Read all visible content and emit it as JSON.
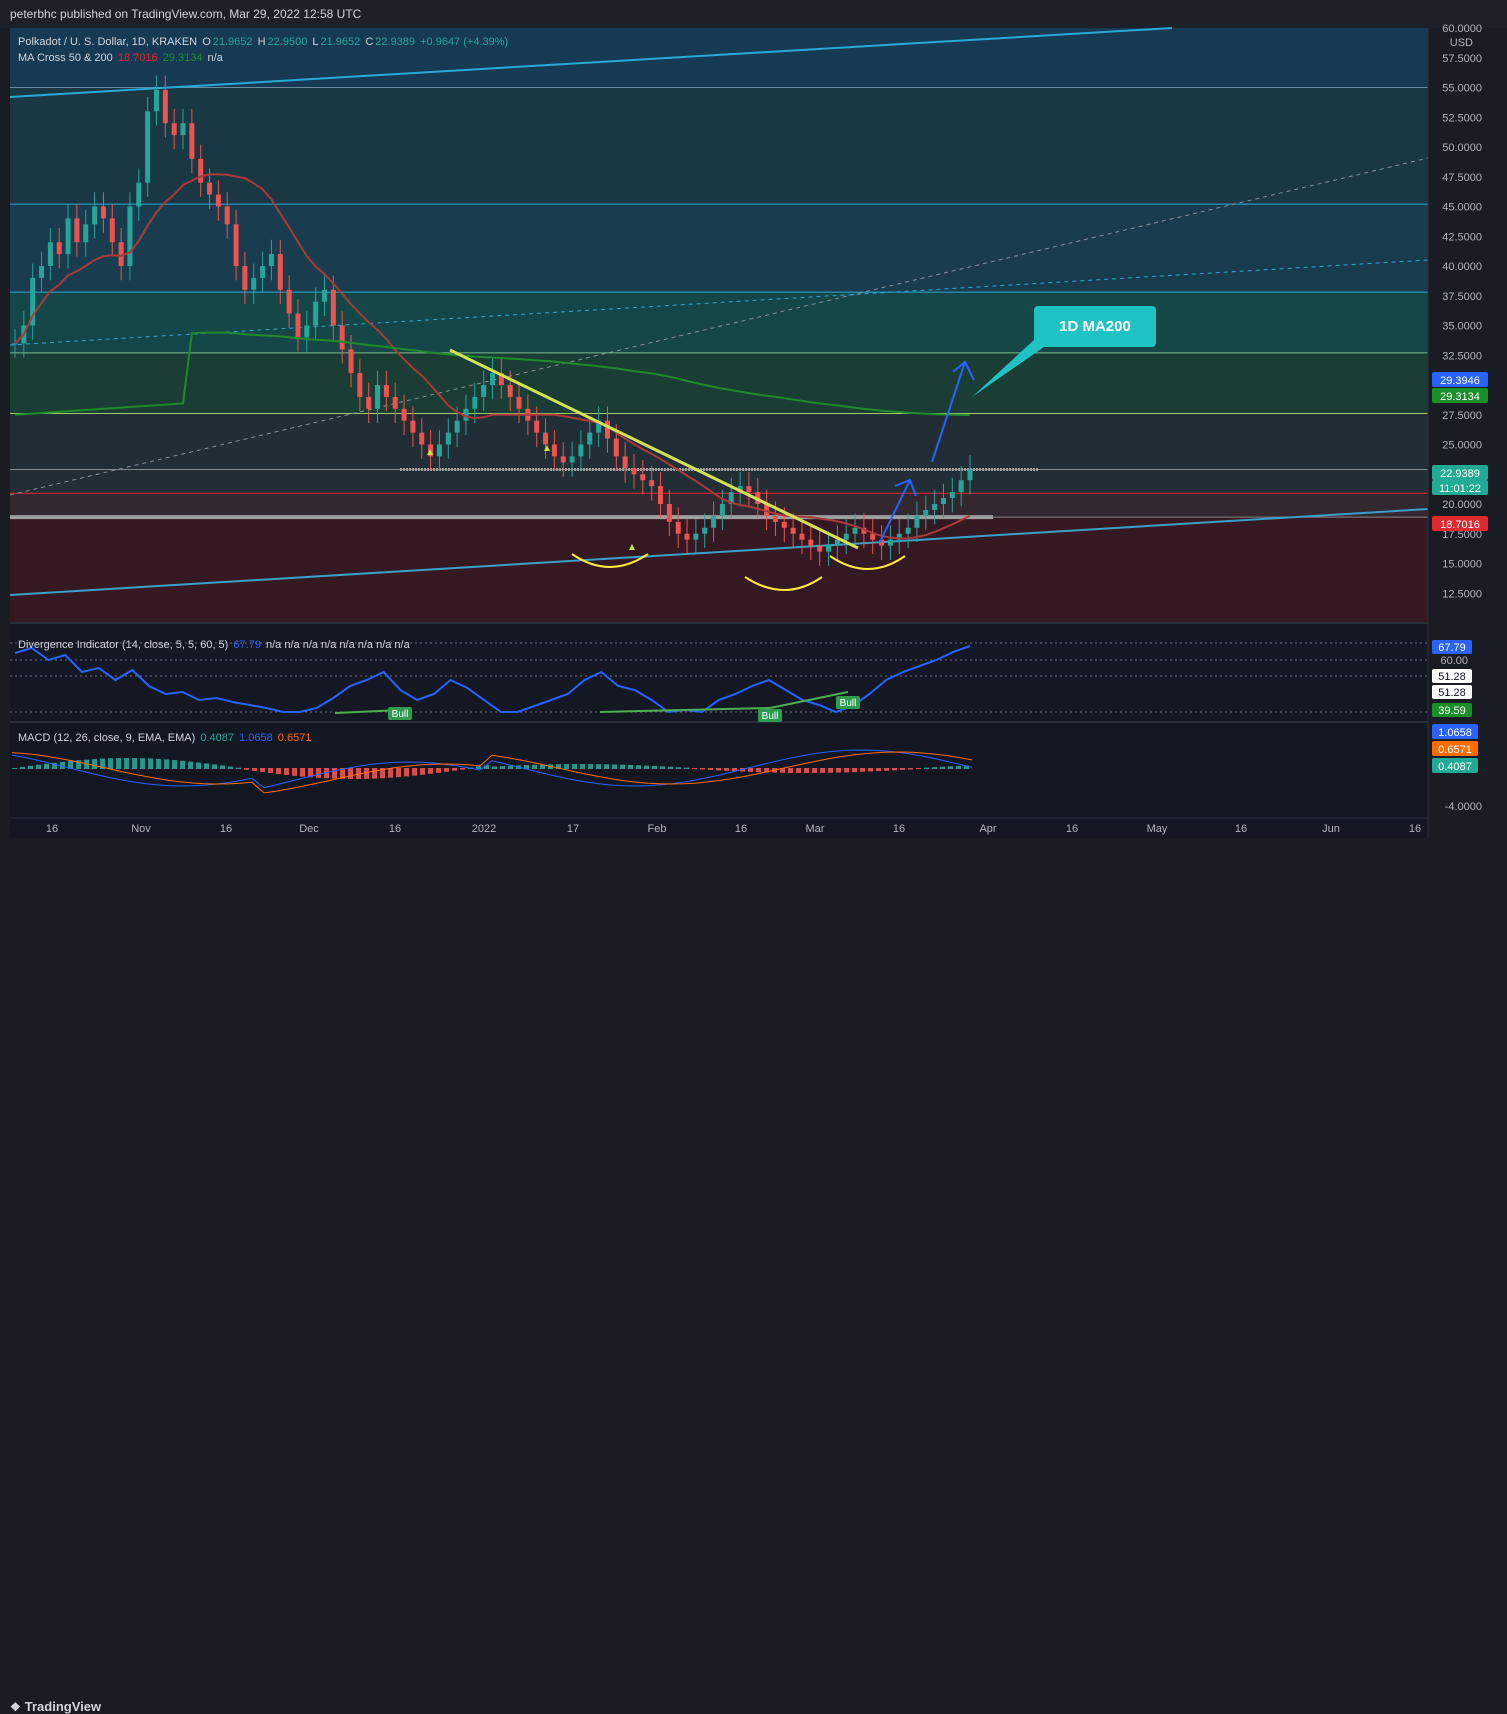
{
  "header": {
    "publisher_text": "peterbhc published on TradingView.com, Mar 29, 2022 12:58 UTC"
  },
  "legend": {
    "symbol_title": "Polkadot / U. S. Dollar, 1D, KRAKEN",
    "ohlc": {
      "o_label": "O",
      "o": "21.9652",
      "h_label": "H",
      "h": "22.9500",
      "l_label": "L",
      "l": "21.9652",
      "c_label": "C",
      "c": "22.9389",
      "change": "+0.9647 (+4.39%)"
    },
    "ma_cross": {
      "label": "MA Cross 50 & 200",
      "ma50": "18.7016",
      "ma200": "29.3134",
      "extra": "n/a"
    },
    "divergence": {
      "label": "Divergence Indicator (14, close, 5, 5, 60, 5)",
      "value": "67.79",
      "na": "n/a  n/a  n/a  n/a  n/a  n/a  n/a  n/a"
    },
    "macd": {
      "label": "MACD (12, 26, close, 9, EMA, EMA)",
      "hist": "0.4087",
      "macd": "1.0658",
      "signal": "0.6571"
    }
  },
  "price_scale": {
    "currency": "USD",
    "ticks": [
      "60.0000",
      "57.5000",
      "55.0000",
      "52.5000",
      "50.0000",
      "47.5000",
      "45.0000",
      "42.5000",
      "40.0000",
      "37.5000",
      "35.0000",
      "32.5000",
      "27.5000",
      "25.0000",
      "20.0000",
      "17.5000",
      "15.0000",
      "12.5000"
    ],
    "tags": [
      {
        "text": "29.3946",
        "color": "#2962ff"
      },
      {
        "text": "29.3134",
        "color": "#1b8f2a"
      },
      {
        "text": "22.9389",
        "color": "#22ab94"
      },
      {
        "text": "11:01:22",
        "color": "#22ab94"
      },
      {
        "text": "18.7016",
        "color": "#e0282f"
      }
    ]
  },
  "divergence_scale": {
    "ticks": [
      "60.00"
    ],
    "tags": [
      {
        "text": "67.79",
        "color": "#2962ff"
      },
      {
        "text": "51.28",
        "color": "#ffffff"
      },
      {
        "text": "51.28",
        "color": "#ffffff"
      },
      {
        "text": "39.59",
        "color": "#1b8f2a"
      }
    ]
  },
  "macd_scale": {
    "ticks": [
      "-4.0000"
    ],
    "tags": [
      {
        "text": "1.0658",
        "color": "#2962ff"
      },
      {
        "text": "0.6571",
        "color": "#ff6d00"
      },
      {
        "text": "0.4087",
        "color": "#22ab94"
      }
    ]
  },
  "time_axis": [
    "16",
    "Nov",
    "16",
    "Dec",
    "16",
    "2022",
    "17",
    "Feb",
    "16",
    "Mar",
    "16",
    "Apr",
    "16",
    "May",
    "16",
    "Jun",
    "16"
  ],
  "annotations": {
    "callout": "1D MA200",
    "bull_labels": [
      "Bull",
      "Bull",
      "Bull"
    ]
  },
  "footer": {
    "brand": "TradingView"
  },
  "colors": {
    "bg": "#131722",
    "up": "#26a69a",
    "down": "#ef5350",
    "ma50": "#a83a3a",
    "ma200": "#1f8b2a",
    "trendline": "#d4e157",
    "channel": "#2aa9d9",
    "arrow": "#2962ff",
    "bull": "#2e9b4e"
  },
  "chart_data": {
    "type": "candlestick",
    "title": "Polkadot / U. S. Dollar, 1D, KRAKEN",
    "ylim": [
      10,
      60
    ],
    "x_labels": [
      "16",
      "Nov",
      "16",
      "Dec",
      "16",
      "2022",
      "17",
      "Feb",
      "16",
      "Mar",
      "16",
      "Apr",
      "16",
      "May",
      "16",
      "Jun",
      "16"
    ],
    "ohlc_last": {
      "open": 21.9652,
      "high": 22.95,
      "low": 21.9652,
      "close": 22.9389
    },
    "close_series": [
      33.5,
      35,
      39,
      40,
      42,
      41,
      44,
      42,
      43.5,
      45,
      44,
      42,
      40,
      45,
      47,
      53,
      54.8,
      52,
      51,
      52,
      49,
      47,
      46,
      45,
      43.5,
      40,
      38,
      39,
      40,
      41,
      38,
      36,
      34,
      35,
      37,
      38,
      35,
      33,
      31,
      29,
      28,
      30,
      29,
      28,
      27,
      26,
      25,
      24,
      25,
      26,
      27,
      28,
      29,
      30,
      31,
      30,
      29,
      28,
      27,
      26,
      25,
      24,
      23.5,
      24,
      25,
      26,
      27,
      25.5,
      24,
      23,
      22.5,
      22,
      21.5,
      20,
      18.5,
      17.5,
      17,
      17.5,
      18,
      19,
      20,
      21,
      21.5,
      21,
      20,
      19,
      18.5,
      18,
      17.5,
      17,
      16.5,
      16,
      16.5,
      17,
      17.5,
      18,
      17.5,
      17,
      16.5,
      17,
      17.5,
      18,
      19,
      19.5,
      20,
      20.5,
      21,
      22,
      22.9
    ],
    "ma50": {
      "name": "MA 50",
      "last": 18.7016
    },
    "ma200": {
      "name": "MA 200",
      "last": 29.3134
    },
    "horizontal_levels": [
      55.0,
      45.2,
      37.8,
      32.7,
      27.6,
      22.9,
      20.9,
      18.9
    ],
    "divergence_indicator": {
      "last": 67.79,
      "levels": [
        60,
        51.28,
        39.59
      ]
    },
    "macd": {
      "macd": 1.0658,
      "signal": 0.6571,
      "histogram": 0.4087
    }
  }
}
